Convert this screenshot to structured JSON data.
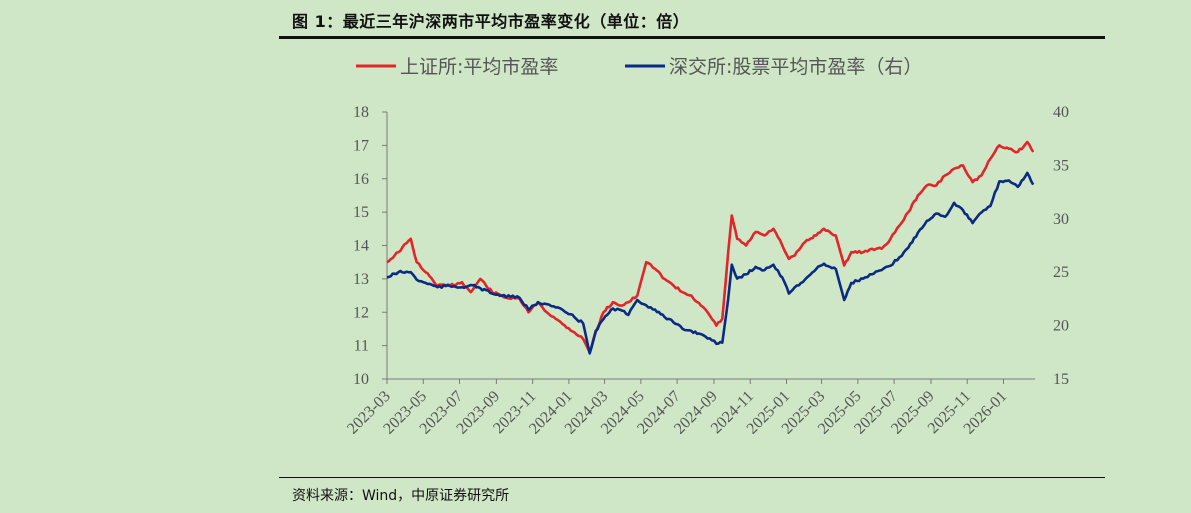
{
  "figure": {
    "title": "图 1：最近三年沪深两市平均市盈率变化（单位：倍）",
    "source": "资料来源：Wind，中原证券研究所"
  },
  "chart_data": {
    "type": "line",
    "legend_position": "top",
    "grid": false,
    "x_ticks": [
      "2023-03",
      "2023-05",
      "2023-07",
      "2023-09",
      "2023-11",
      "2024-01",
      "2024-03",
      "2024-05",
      "2024-07",
      "2024-09",
      "2024-11",
      "2025-01",
      "2025-03",
      "2025-05",
      "2025-07",
      "2025-09",
      "2025-11",
      "2026-01"
    ],
    "y_left": {
      "ticks": [
        "18",
        "17",
        "16",
        "15",
        "14",
        "13",
        "12",
        "11",
        "10"
      ],
      "range": [
        10,
        18
      ]
    },
    "y_right": {
      "ticks": [
        "40",
        "35",
        "30",
        "25",
        "20",
        "15"
      ],
      "range": [
        15,
        40
      ]
    },
    "series": [
      {
        "name": "上证所:平均市盈率",
        "axis": "left",
        "color": "#e0262a",
        "points": [
          [
            "2023-03-01",
            13.5
          ],
          [
            "2023-03-20",
            13.8
          ],
          [
            "2023-04-10",
            14.2
          ],
          [
            "2023-04-20",
            13.5
          ],
          [
            "2023-05-05",
            13.2
          ],
          [
            "2023-05-25",
            12.8
          ],
          [
            "2023-06-15",
            12.8
          ],
          [
            "2023-07-05",
            12.9
          ],
          [
            "2023-07-20",
            12.6
          ],
          [
            "2023-08-05",
            13.0
          ],
          [
            "2023-08-25",
            12.6
          ],
          [
            "2023-09-10",
            12.5
          ],
          [
            "2023-09-25",
            12.4
          ],
          [
            "2023-10-10",
            12.4
          ],
          [
            "2023-10-25",
            12.0
          ],
          [
            "2023-11-10",
            12.3
          ],
          [
            "2023-11-25",
            12.0
          ],
          [
            "2023-12-10",
            11.8
          ],
          [
            "2023-12-25",
            11.6
          ],
          [
            "2024-01-10",
            11.4
          ],
          [
            "2024-01-25",
            11.2
          ],
          [
            "2024-02-05",
            10.8
          ],
          [
            "2024-02-15",
            11.4
          ],
          [
            "2024-02-28",
            12.0
          ],
          [
            "2024-03-15",
            12.3
          ],
          [
            "2024-03-30",
            12.2
          ],
          [
            "2024-04-10",
            12.3
          ],
          [
            "2024-04-25",
            12.5
          ],
          [
            "2024-05-10",
            13.5
          ],
          [
            "2024-05-25",
            13.3
          ],
          [
            "2024-06-10",
            13.0
          ],
          [
            "2024-06-25",
            12.8
          ],
          [
            "2024-07-10",
            12.6
          ],
          [
            "2024-07-25",
            12.5
          ],
          [
            "2024-08-10",
            12.2
          ],
          [
            "2024-08-25",
            11.9
          ],
          [
            "2024-09-05",
            11.6
          ],
          [
            "2024-09-15",
            11.8
          ],
          [
            "2024-09-25",
            13.8
          ],
          [
            "2024-10-01",
            14.9
          ],
          [
            "2024-10-10",
            14.2
          ],
          [
            "2024-10-25",
            14.0
          ],
          [
            "2024-11-10",
            14.4
          ],
          [
            "2024-11-25",
            14.3
          ],
          [
            "2024-12-10",
            14.5
          ],
          [
            "2024-12-25",
            14.0
          ],
          [
            "2025-01-05",
            13.6
          ],
          [
            "2025-01-15",
            13.7
          ],
          [
            "2025-02-01",
            14.1
          ],
          [
            "2025-02-20",
            14.3
          ],
          [
            "2025-03-05",
            14.5
          ],
          [
            "2025-03-15",
            14.4
          ],
          [
            "2025-03-25",
            14.3
          ],
          [
            "2025-04-08",
            13.4
          ],
          [
            "2025-04-20",
            13.8
          ],
          [
            "2025-05-10",
            13.8
          ],
          [
            "2025-05-25",
            13.9
          ],
          [
            "2025-06-10",
            13.9
          ],
          [
            "2025-06-25",
            14.2
          ],
          [
            "2025-07-10",
            14.6
          ],
          [
            "2025-07-25",
            15.0
          ],
          [
            "2025-08-10",
            15.5
          ],
          [
            "2025-08-25",
            15.8
          ],
          [
            "2025-09-10",
            15.8
          ],
          [
            "2025-09-25",
            16.1
          ],
          [
            "2025-10-10",
            16.3
          ],
          [
            "2025-10-25",
            16.4
          ],
          [
            "2025-11-10",
            15.9
          ],
          [
            "2025-11-25",
            16.1
          ],
          [
            "2025-12-10",
            16.6
          ],
          [
            "2025-12-25",
            17.0
          ],
          [
            "2026-01-10",
            16.9
          ],
          [
            "2026-01-25",
            16.8
          ],
          [
            "2026-02-10",
            17.1
          ],
          [
            "2026-02-20",
            16.8
          ]
        ]
      },
      {
        "name": "深交所:股票平均市盈率（右）",
        "axis": "right",
        "color": "#0b2a82",
        "points": [
          [
            "2023-03-01",
            24.5
          ],
          [
            "2023-03-20",
            25.0
          ],
          [
            "2023-04-10",
            25.0
          ],
          [
            "2023-04-20",
            24.3
          ],
          [
            "2023-05-05",
            24.0
          ],
          [
            "2023-05-25",
            23.6
          ],
          [
            "2023-06-15",
            23.7
          ],
          [
            "2023-07-05",
            23.6
          ],
          [
            "2023-07-20",
            23.8
          ],
          [
            "2023-08-05",
            23.5
          ],
          [
            "2023-08-25",
            23.0
          ],
          [
            "2023-09-10",
            22.8
          ],
          [
            "2023-09-25",
            22.7
          ],
          [
            "2023-10-10",
            22.6
          ],
          [
            "2023-10-25",
            21.5
          ],
          [
            "2023-11-10",
            22.2
          ],
          [
            "2023-11-25",
            22.0
          ],
          [
            "2023-12-10",
            21.7
          ],
          [
            "2023-12-25",
            21.3
          ],
          [
            "2024-01-10",
            20.8
          ],
          [
            "2024-01-25",
            20.2
          ],
          [
            "2024-02-05",
            17.4
          ],
          [
            "2024-02-15",
            19.5
          ],
          [
            "2024-02-28",
            20.6
          ],
          [
            "2024-03-15",
            21.6
          ],
          [
            "2024-03-30",
            21.4
          ],
          [
            "2024-04-10",
            21.0
          ],
          [
            "2024-04-25",
            22.4
          ],
          [
            "2024-05-10",
            21.9
          ],
          [
            "2024-05-25",
            21.5
          ],
          [
            "2024-06-10",
            20.8
          ],
          [
            "2024-06-25",
            20.3
          ],
          [
            "2024-07-10",
            19.7
          ],
          [
            "2024-07-25",
            19.5
          ],
          [
            "2024-08-10",
            19.2
          ],
          [
            "2024-08-25",
            18.8
          ],
          [
            "2024-09-05",
            18.3
          ],
          [
            "2024-09-15",
            18.4
          ],
          [
            "2024-09-25",
            22.5
          ],
          [
            "2024-10-01",
            25.7
          ],
          [
            "2024-10-10",
            24.4
          ],
          [
            "2024-10-25",
            24.8
          ],
          [
            "2024-11-10",
            25.5
          ],
          [
            "2024-11-25",
            25.2
          ],
          [
            "2024-12-10",
            25.7
          ],
          [
            "2024-12-25",
            24.5
          ],
          [
            "2025-01-05",
            23.0
          ],
          [
            "2025-01-15",
            23.6
          ],
          [
            "2025-02-01",
            24.3
          ],
          [
            "2025-02-20",
            25.3
          ],
          [
            "2025-03-05",
            25.8
          ],
          [
            "2025-03-15",
            25.5
          ],
          [
            "2025-03-25",
            25.3
          ],
          [
            "2025-04-08",
            22.4
          ],
          [
            "2025-04-20",
            24.0
          ],
          [
            "2025-05-10",
            24.4
          ],
          [
            "2025-05-25",
            24.8
          ],
          [
            "2025-06-10",
            25.2
          ],
          [
            "2025-06-25",
            25.6
          ],
          [
            "2025-07-10",
            26.4
          ],
          [
            "2025-07-25",
            27.3
          ],
          [
            "2025-08-10",
            28.7
          ],
          [
            "2025-08-25",
            29.8
          ],
          [
            "2025-09-10",
            30.5
          ],
          [
            "2025-09-25",
            30.2
          ],
          [
            "2025-10-10",
            31.5
          ],
          [
            "2025-10-25",
            30.8
          ],
          [
            "2025-11-10",
            29.6
          ],
          [
            "2025-11-25",
            30.6
          ],
          [
            "2025-12-10",
            31.2
          ],
          [
            "2025-12-25",
            33.5
          ],
          [
            "2026-01-10",
            33.6
          ],
          [
            "2026-01-25",
            33.0
          ],
          [
            "2026-02-10",
            34.3
          ],
          [
            "2026-02-20",
            33.2
          ]
        ]
      }
    ]
  }
}
